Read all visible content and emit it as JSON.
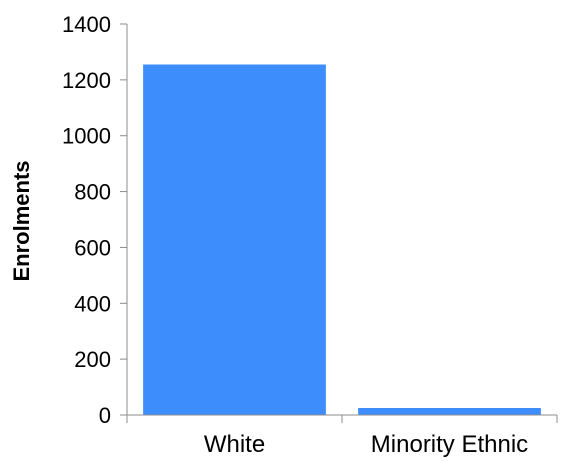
{
  "chart_data": {
    "type": "bar",
    "categories": [
      "White",
      "Minority Ethnic"
    ],
    "values": [
      1255,
      25
    ],
    "title": "",
    "xlabel": "",
    "ylabel": "Enrolments",
    "ylim": [
      0,
      1400
    ],
    "yticks": [
      0,
      200,
      400,
      600,
      800,
      1000,
      1200,
      1400
    ],
    "grid": false,
    "legend": "none",
    "colors": {
      "bar": "#3d8dfc",
      "axis": "#8c8c8c"
    }
  }
}
